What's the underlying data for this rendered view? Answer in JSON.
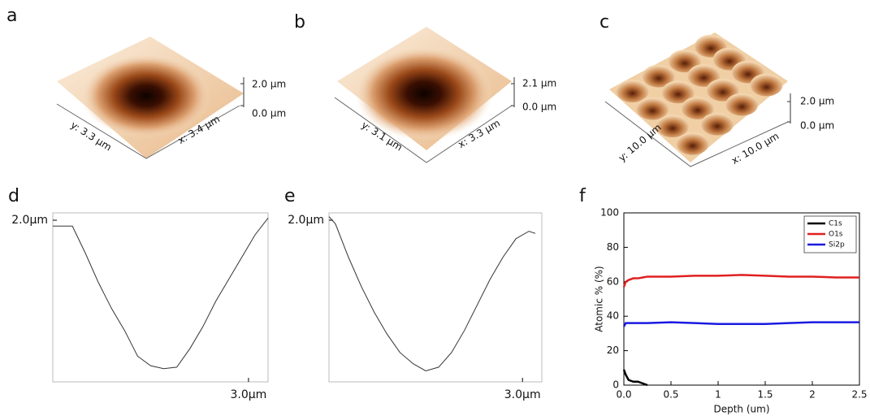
{
  "afm_images": [
    {
      "label": "a",
      "z_top": "2.0 µm",
      "z_bottom": "0.0 µm",
      "y_axis": "y: 3.3 µm",
      "x_axis": "x: 3.4 µm"
    },
    {
      "label": "b",
      "z_top": "2.1 µm",
      "z_bottom": "0.0 µm",
      "y_axis": "y: 3.1 µm",
      "x_axis": "x: 3.3 µm"
    },
    {
      "label": "c",
      "z_top": "2.0 µm",
      "z_bottom": "0.0 µm",
      "y_axis": "y: 10.0 µm",
      "x_axis": "x: 10.0 µm"
    }
  ],
  "chart_data": [
    {
      "type": "line",
      "panel_label": "d",
      "x": [
        0,
        0.3,
        0.5,
        0.7,
        0.9,
        1.1,
        1.3,
        1.5,
        1.7,
        1.9,
        2.1,
        2.3,
        2.5,
        2.7,
        2.9,
        3.1,
        3.3
      ],
      "series": [
        {
          "color": "#333333",
          "values": [
            1.92,
            1.92,
            1.55,
            1.15,
            0.8,
            0.5,
            0.15,
            0.02,
            -0.02,
            0.0,
            0.25,
            0.55,
            0.9,
            1.2,
            1.5,
            1.8,
            2.03
          ]
        }
      ],
      "xlim": [
        0,
        3.3
      ],
      "ylim": [
        -0.2,
        2.1
      ],
      "xticks": [
        {
          "value": 3.0,
          "label": "3.0µm"
        }
      ],
      "yticks": [
        {
          "value": 2.0,
          "label": "2.0µm"
        }
      ]
    },
    {
      "type": "line",
      "panel_label": "e",
      "x": [
        0,
        0.1,
        0.3,
        0.5,
        0.7,
        0.9,
        1.1,
        1.3,
        1.5,
        1.7,
        1.9,
        2.1,
        2.3,
        2.5,
        2.7,
        2.9,
        3.1,
        3.2
      ],
      "series": [
        {
          "color": "#333333",
          "values": [
            2.05,
            1.95,
            1.5,
            1.1,
            0.75,
            0.45,
            0.2,
            0.05,
            -0.05,
            0.0,
            0.2,
            0.5,
            0.85,
            1.2,
            1.5,
            1.75,
            1.85,
            1.82
          ]
        }
      ],
      "xlim": [
        0,
        3.3
      ],
      "ylim": [
        -0.2,
        2.1
      ],
      "xticks": [
        {
          "value": 3.0,
          "label": "3.0µm"
        }
      ],
      "yticks": [
        {
          "value": 2.0,
          "label": "2.0µm"
        }
      ]
    },
    {
      "type": "line",
      "panel_label": "f",
      "xlabel": "Depth (um)",
      "ylabel": "Atomic % (%)",
      "x": [
        0,
        0.02,
        0.05,
        0.1,
        0.15,
        0.2,
        0.25,
        0.5,
        0.75,
        1.0,
        1.25,
        1.5,
        1.75,
        2.0,
        2.25,
        2.5
      ],
      "series": [
        {
          "name": "C1s",
          "color": "#000000",
          "values": [
            9,
            6,
            3,
            2,
            2,
            1,
            0,
            null,
            null,
            null,
            null,
            null,
            null,
            null,
            null,
            null
          ]
        },
        {
          "name": "O1s",
          "color": "#e02020",
          "values": [
            57,
            60,
            61,
            62,
            62,
            62.5,
            63,
            63,
            63.5,
            63.5,
            64,
            63.5,
            63,
            63,
            62.5,
            62.5
          ]
        },
        {
          "name": "Si2p",
          "color": "#1a1ae0",
          "values": [
            34,
            36,
            36,
            36,
            36,
            36,
            36,
            36.5,
            36,
            35.5,
            35.5,
            35.5,
            36,
            36.5,
            36.5,
            36.5
          ]
        }
      ],
      "xlim": [
        0,
        2.5
      ],
      "ylim": [
        0,
        100
      ],
      "xticks": [
        {
          "value": 0,
          "label": "0.0"
        },
        0.5,
        1.0,
        1.5,
        2.0,
        2.5
      ],
      "yticks": [
        0,
        20,
        40,
        60,
        80,
        100
      ],
      "legend": "upper right"
    }
  ]
}
